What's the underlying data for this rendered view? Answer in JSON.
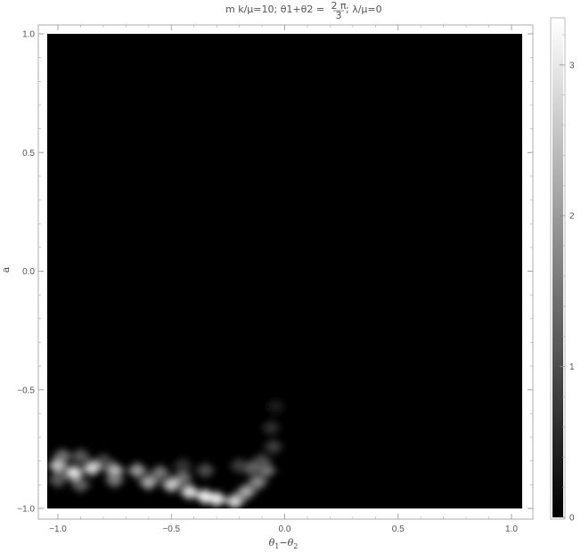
{
  "chart_data": {
    "type": "heatmap",
    "title_prefix": "m k/μ=10; θ1+θ2 =",
    "title_fraction_numerator": "2 π",
    "title_fraction_denominator": "3",
    "title_suffix": "; λ/μ=0",
    "xlabel_main": "θ",
    "xlabel_sub1": "1",
    "xlabel_minus": "−θ",
    "xlabel_sub2": "2",
    "ylabel": "a",
    "xlim": [
      -1.0472,
      1.0472
    ],
    "ylim": [
      -1.0,
      1.0
    ],
    "x_ticks": [
      -1.0,
      -0.5,
      0.0,
      0.5,
      1.0
    ],
    "x_tick_labels": [
      "−1.0",
      "−0.5",
      "0.0",
      "0.5",
      "1.0"
    ],
    "y_ticks": [
      -1.0,
      -0.5,
      0.0,
      0.5,
      1.0
    ],
    "y_tick_labels": [
      "−1.0",
      "−0.5",
      "0.0",
      "0.5",
      "1.0"
    ],
    "colorbar": {
      "range": [
        0,
        3.3
      ],
      "ticks": [
        0,
        1,
        2,
        3
      ],
      "tick_labels": [
        "0",
        "1",
        "2",
        "3"
      ],
      "colormap": [
        "#000000",
        "#ffffff"
      ]
    },
    "background_value": 0,
    "hotspots": [
      {
        "x": -1.0,
        "y": -0.82,
        "value": 2.6
      },
      {
        "x": -0.93,
        "y": -0.85,
        "value": 3.0
      },
      {
        "x": -0.85,
        "y": -0.83,
        "value": 2.8
      },
      {
        "x": -0.75,
        "y": -0.84,
        "value": 2.4
      },
      {
        "x": -0.65,
        "y": -0.84,
        "value": 2.0
      },
      {
        "x": -0.55,
        "y": -0.85,
        "value": 1.6
      },
      {
        "x": -0.98,
        "y": -0.78,
        "value": 1.5
      },
      {
        "x": -0.9,
        "y": -0.78,
        "value": 1.2
      },
      {
        "x": -0.8,
        "y": -0.8,
        "value": 1.0
      },
      {
        "x": -1.0,
        "y": -0.88,
        "value": 1.2
      },
      {
        "x": -0.9,
        "y": -0.9,
        "value": 1.3
      },
      {
        "x": -0.75,
        "y": -0.88,
        "value": 1.6
      },
      {
        "x": -0.6,
        "y": -0.89,
        "value": 2.2
      },
      {
        "x": -0.5,
        "y": -0.9,
        "value": 2.6
      },
      {
        "x": -0.42,
        "y": -0.93,
        "value": 2.9
      },
      {
        "x": -0.35,
        "y": -0.95,
        "value": 3.2
      },
      {
        "x": -0.3,
        "y": -0.96,
        "value": 3.1
      },
      {
        "x": -0.45,
        "y": -0.87,
        "value": 1.5
      },
      {
        "x": -0.35,
        "y": -0.84,
        "value": 1.0
      },
      {
        "x": -0.22,
        "y": -0.97,
        "value": 2.8
      },
      {
        "x": -0.17,
        "y": -0.93,
        "value": 2.2
      },
      {
        "x": -0.12,
        "y": -0.89,
        "value": 1.8
      },
      {
        "x": -0.08,
        "y": -0.84,
        "value": 1.5
      },
      {
        "x": -0.1,
        "y": -0.8,
        "value": 1.0
      },
      {
        "x": -0.15,
        "y": -0.83,
        "value": 1.3
      },
      {
        "x": -0.05,
        "y": -0.74,
        "value": 0.8
      },
      {
        "x": -0.06,
        "y": -0.66,
        "value": 0.6
      },
      {
        "x": -0.04,
        "y": -0.57,
        "value": 0.4
      },
      {
        "x": -0.2,
        "y": -0.82,
        "value": 0.8
      },
      {
        "x": -0.45,
        "y": -0.82,
        "value": 0.7
      }
    ]
  }
}
